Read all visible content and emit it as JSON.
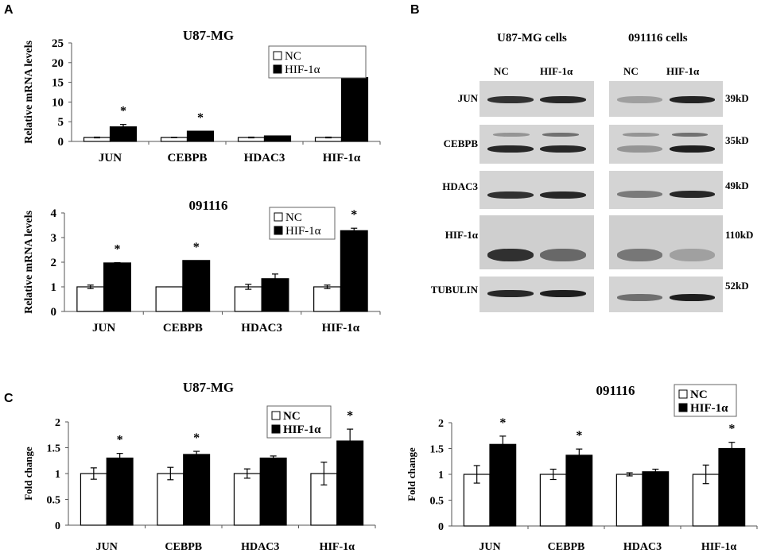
{
  "panels": {
    "A": {
      "letter": "A"
    },
    "B": {
      "letter": "B",
      "groups": [
        {
          "title": "U87-MG cells",
          "lanes": [
            "NC",
            "HIF-1α"
          ]
        },
        {
          "title": "091116  cells",
          "lanes": [
            "NC",
            "HIF-1α"
          ]
        }
      ],
      "rows": [
        {
          "protein": "JUN",
          "size": "39kD"
        },
        {
          "protein": "CEBPB",
          "size": "35kD"
        },
        {
          "protein": "HDAC3",
          "size": "49kD"
        },
        {
          "protein": "HIF-1α",
          "size": "110kD"
        },
        {
          "protein": "TUBULIN",
          "size": "52kD"
        }
      ]
    },
    "C": {
      "letter": "C"
    }
  },
  "legend": {
    "nc": "NC",
    "hif": "HIF-1α"
  },
  "colors": {
    "nc_fill": "#ffffff",
    "hif_fill": "#000000",
    "axis": "#555555",
    "blot_bg": "#d4d4d4",
    "band": "#1a1a1a"
  },
  "chart_data": [
    {
      "id": "A-top",
      "type": "bar",
      "title": "U87-MG",
      "xlabel": "",
      "ylabel": "Relative mRNA levels",
      "ylim": [
        0,
        25
      ],
      "yticks": [
        0,
        5,
        10,
        15,
        20,
        25
      ],
      "categories": [
        "JUN",
        "CEBPB",
        "HDAC3",
        "HIF-1α"
      ],
      "series": [
        {
          "name": "NC",
          "values": [
            1.0,
            1.0,
            1.0,
            1.0
          ],
          "errors": [
            0.1,
            0.05,
            0.1,
            0.1
          ]
        },
        {
          "name": "HIF-1α",
          "values": [
            3.7,
            2.6,
            1.4,
            16.2
          ],
          "errors": [
            0.6,
            0.0,
            0.0,
            3.4
          ]
        }
      ],
      "significance": [
        true,
        true,
        false,
        true
      ],
      "legend_position": "upper right",
      "grid": false
    },
    {
      "id": "A-bottom",
      "type": "bar",
      "title": "091116",
      "xlabel": "",
      "ylabel": "Relative mRNA levels",
      "ylim": [
        0,
        4
      ],
      "yticks": [
        0,
        1,
        2,
        3,
        4
      ],
      "categories": [
        "JUN",
        "CEBPB",
        "HDAC3",
        "HIF-1α"
      ],
      "series": [
        {
          "name": "NC",
          "values": [
            1.0,
            1.0,
            1.0,
            1.0
          ],
          "errors": [
            0.07,
            0.0,
            0.1,
            0.07
          ]
        },
        {
          "name": "HIF-1α",
          "values": [
            1.97,
            2.07,
            1.33,
            3.28
          ],
          "errors": [
            0.01,
            0.0,
            0.19,
            0.1
          ]
        }
      ],
      "significance": [
        true,
        true,
        false,
        true
      ],
      "legend_position": "upper right",
      "grid": false
    },
    {
      "id": "C-left",
      "type": "bar",
      "title": "U87-MG",
      "xlabel": "",
      "ylabel": "Fold change",
      "ylim": [
        0,
        2
      ],
      "yticks": [
        0,
        0.5,
        1,
        1.5,
        2
      ],
      "categories": [
        "JUN",
        "CEBPB",
        "HDAC3",
        "HIF-1α"
      ],
      "series": [
        {
          "name": "NC",
          "values": [
            1.0,
            1.0,
            1.0,
            1.0
          ],
          "errors": [
            0.11,
            0.12,
            0.09,
            0.22
          ]
        },
        {
          "name": "HIF-1α",
          "values": [
            1.3,
            1.37,
            1.3,
            1.63
          ],
          "errors": [
            0.09,
            0.06,
            0.04,
            0.23
          ]
        }
      ],
      "significance": [
        true,
        true,
        false,
        true
      ],
      "legend_position": "upper right",
      "grid": false
    },
    {
      "id": "C-right",
      "type": "bar",
      "title": "091116",
      "xlabel": "",
      "ylabel": "Fold change",
      "ylim": [
        0,
        2
      ],
      "yticks": [
        0,
        0.5,
        1,
        1.5,
        2
      ],
      "categories": [
        "JUN",
        "CEBPB",
        "HDAC3",
        "HIF-1α"
      ],
      "series": [
        {
          "name": "NC",
          "values": [
            1.0,
            1.0,
            1.0,
            1.0
          ],
          "errors": [
            0.17,
            0.1,
            0.03,
            0.18
          ]
        },
        {
          "name": "HIF-1α",
          "values": [
            1.58,
            1.37,
            1.05,
            1.5
          ],
          "errors": [
            0.16,
            0.12,
            0.05,
            0.12
          ]
        }
      ],
      "significance": [
        true,
        true,
        false,
        true
      ],
      "legend_position": "upper right",
      "grid": false
    }
  ]
}
